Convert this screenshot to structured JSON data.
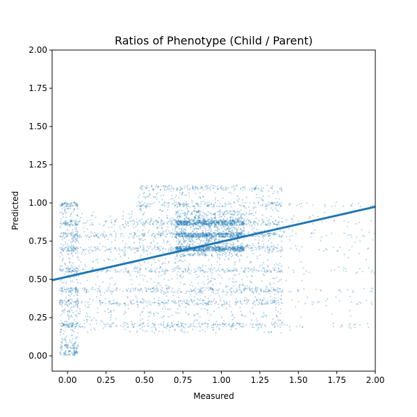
{
  "chart_data": {
    "type": "scatter",
    "title": "Ratios of Phenotype (Child / Parent)",
    "xlabel": "Measured",
    "ylabel": "Predicted",
    "xlim": [
      -0.1,
      2.0
    ],
    "ylim": [
      -0.1,
      2.0
    ],
    "x_ticks": [
      "0.00",
      "0.25",
      "0.50",
      "0.75",
      "1.00",
      "1.25",
      "1.50",
      "1.75",
      "2.00"
    ],
    "y_ticks": [
      "0.00",
      "0.25",
      "0.50",
      "0.75",
      "1.00",
      "1.25",
      "1.50",
      "1.75",
      "2.00"
    ],
    "grid": false,
    "point_color": "#1f77b4",
    "line_color": "#1f77b4",
    "regression_line": {
      "x": [
        -0.1,
        2.0
      ],
      "y": [
        0.495,
        0.975
      ]
    },
    "clusters": [
      {
        "x_range": [
          -0.05,
          0.07
        ],
        "y_range": [
          0.0,
          1.0
        ],
        "count": 700
      },
      {
        "x_range": [
          0.05,
          0.45
        ],
        "y_range": [
          0.15,
          0.95
        ],
        "count": 500
      },
      {
        "x_range": [
          0.45,
          1.4
        ],
        "y_range": [
          0.15,
          1.1
        ],
        "count": 2200
      },
      {
        "x_range": [
          0.7,
          1.15
        ],
        "y_range": [
          0.65,
          0.95
        ],
        "count": 1800
      },
      {
        "x_range": [
          1.2,
          2.0
        ],
        "y_range": [
          0.15,
          1.0
        ],
        "count": 250
      }
    ],
    "bands_y": [
      0.02,
      0.06,
      0.2,
      0.35,
      0.43,
      0.56,
      0.7,
      0.79,
      0.87,
      0.99,
      1.1
    ]
  }
}
